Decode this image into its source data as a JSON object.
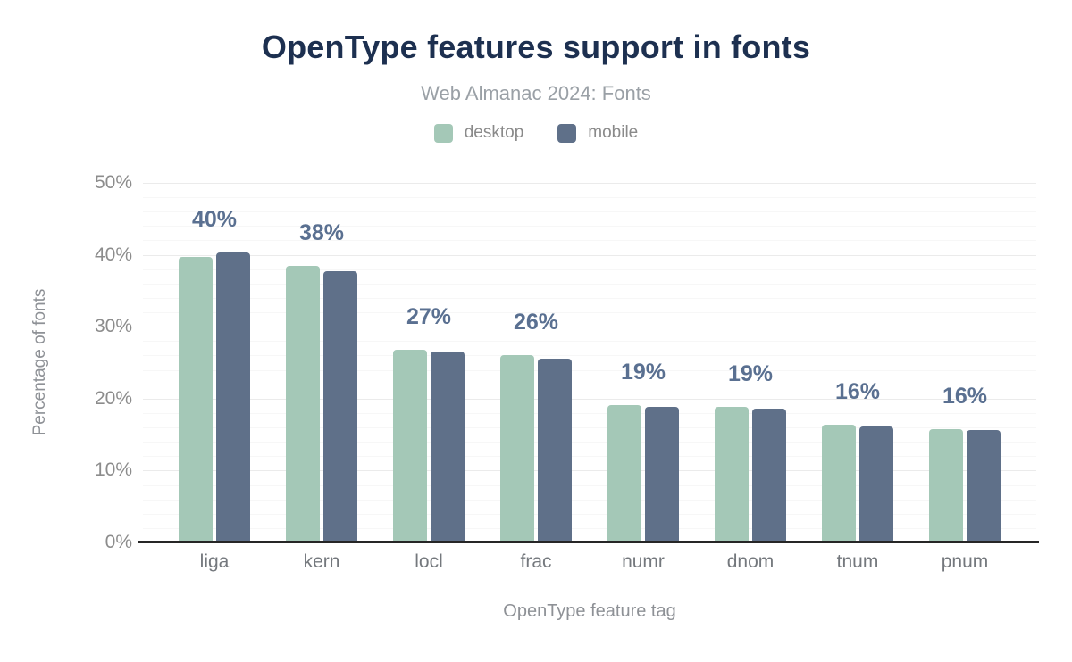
{
  "title": "OpenType features support in fonts",
  "subtitle": "Web Almanac 2024: Fonts",
  "legend": [
    {
      "label": "desktop",
      "color": "#a4c8b7"
    },
    {
      "label": "mobile",
      "color": "#5f7089"
    }
  ],
  "chart_data": {
    "type": "bar",
    "title": "OpenType features support in fonts",
    "subtitle": "Web Almanac 2024: Fonts",
    "categories": [
      "liga",
      "kern",
      "locl",
      "frac",
      "numr",
      "dnom",
      "tnum",
      "pnum"
    ],
    "series": [
      {
        "name": "desktop",
        "color": "#a4c8b7",
        "values": [
          39.7,
          38.5,
          26.8,
          26.0,
          19.1,
          18.9,
          16.4,
          15.8
        ]
      },
      {
        "name": "mobile",
        "color": "#5f7089",
        "values": [
          40.3,
          37.7,
          26.5,
          25.5,
          18.8,
          18.6,
          16.1,
          15.6
        ]
      }
    ],
    "bar_labels": [
      "40%",
      "38%",
      "27%",
      "26%",
      "19%",
      "19%",
      "16%",
      "16%"
    ],
    "xlabel": "OpenType feature tag",
    "ylabel": "Percentage of fonts",
    "ylim": [
      0,
      50
    ],
    "yticks": [
      "0%",
      "10%",
      "20%",
      "30%",
      "40%",
      "50%"
    ],
    "ytick_values": [
      0,
      10,
      20,
      30,
      40,
      50
    ],
    "grid": {
      "major_step": 10,
      "minor_step": 2,
      "on": true
    },
    "legend_position": "top"
  },
  "colors": {
    "title": "#1d3050",
    "subtitle": "#9aa0a6",
    "legend_text": "#8a8a8a",
    "value_label": "#5a7091",
    "tick_label": "#8c8c8c",
    "category_label": "#74787d",
    "axis_title": "#8e9196",
    "axis_line": "#262626",
    "gridline_major": "#ebebeb",
    "gridline_minor": "#f7f7f7",
    "background": "#ffffff"
  }
}
